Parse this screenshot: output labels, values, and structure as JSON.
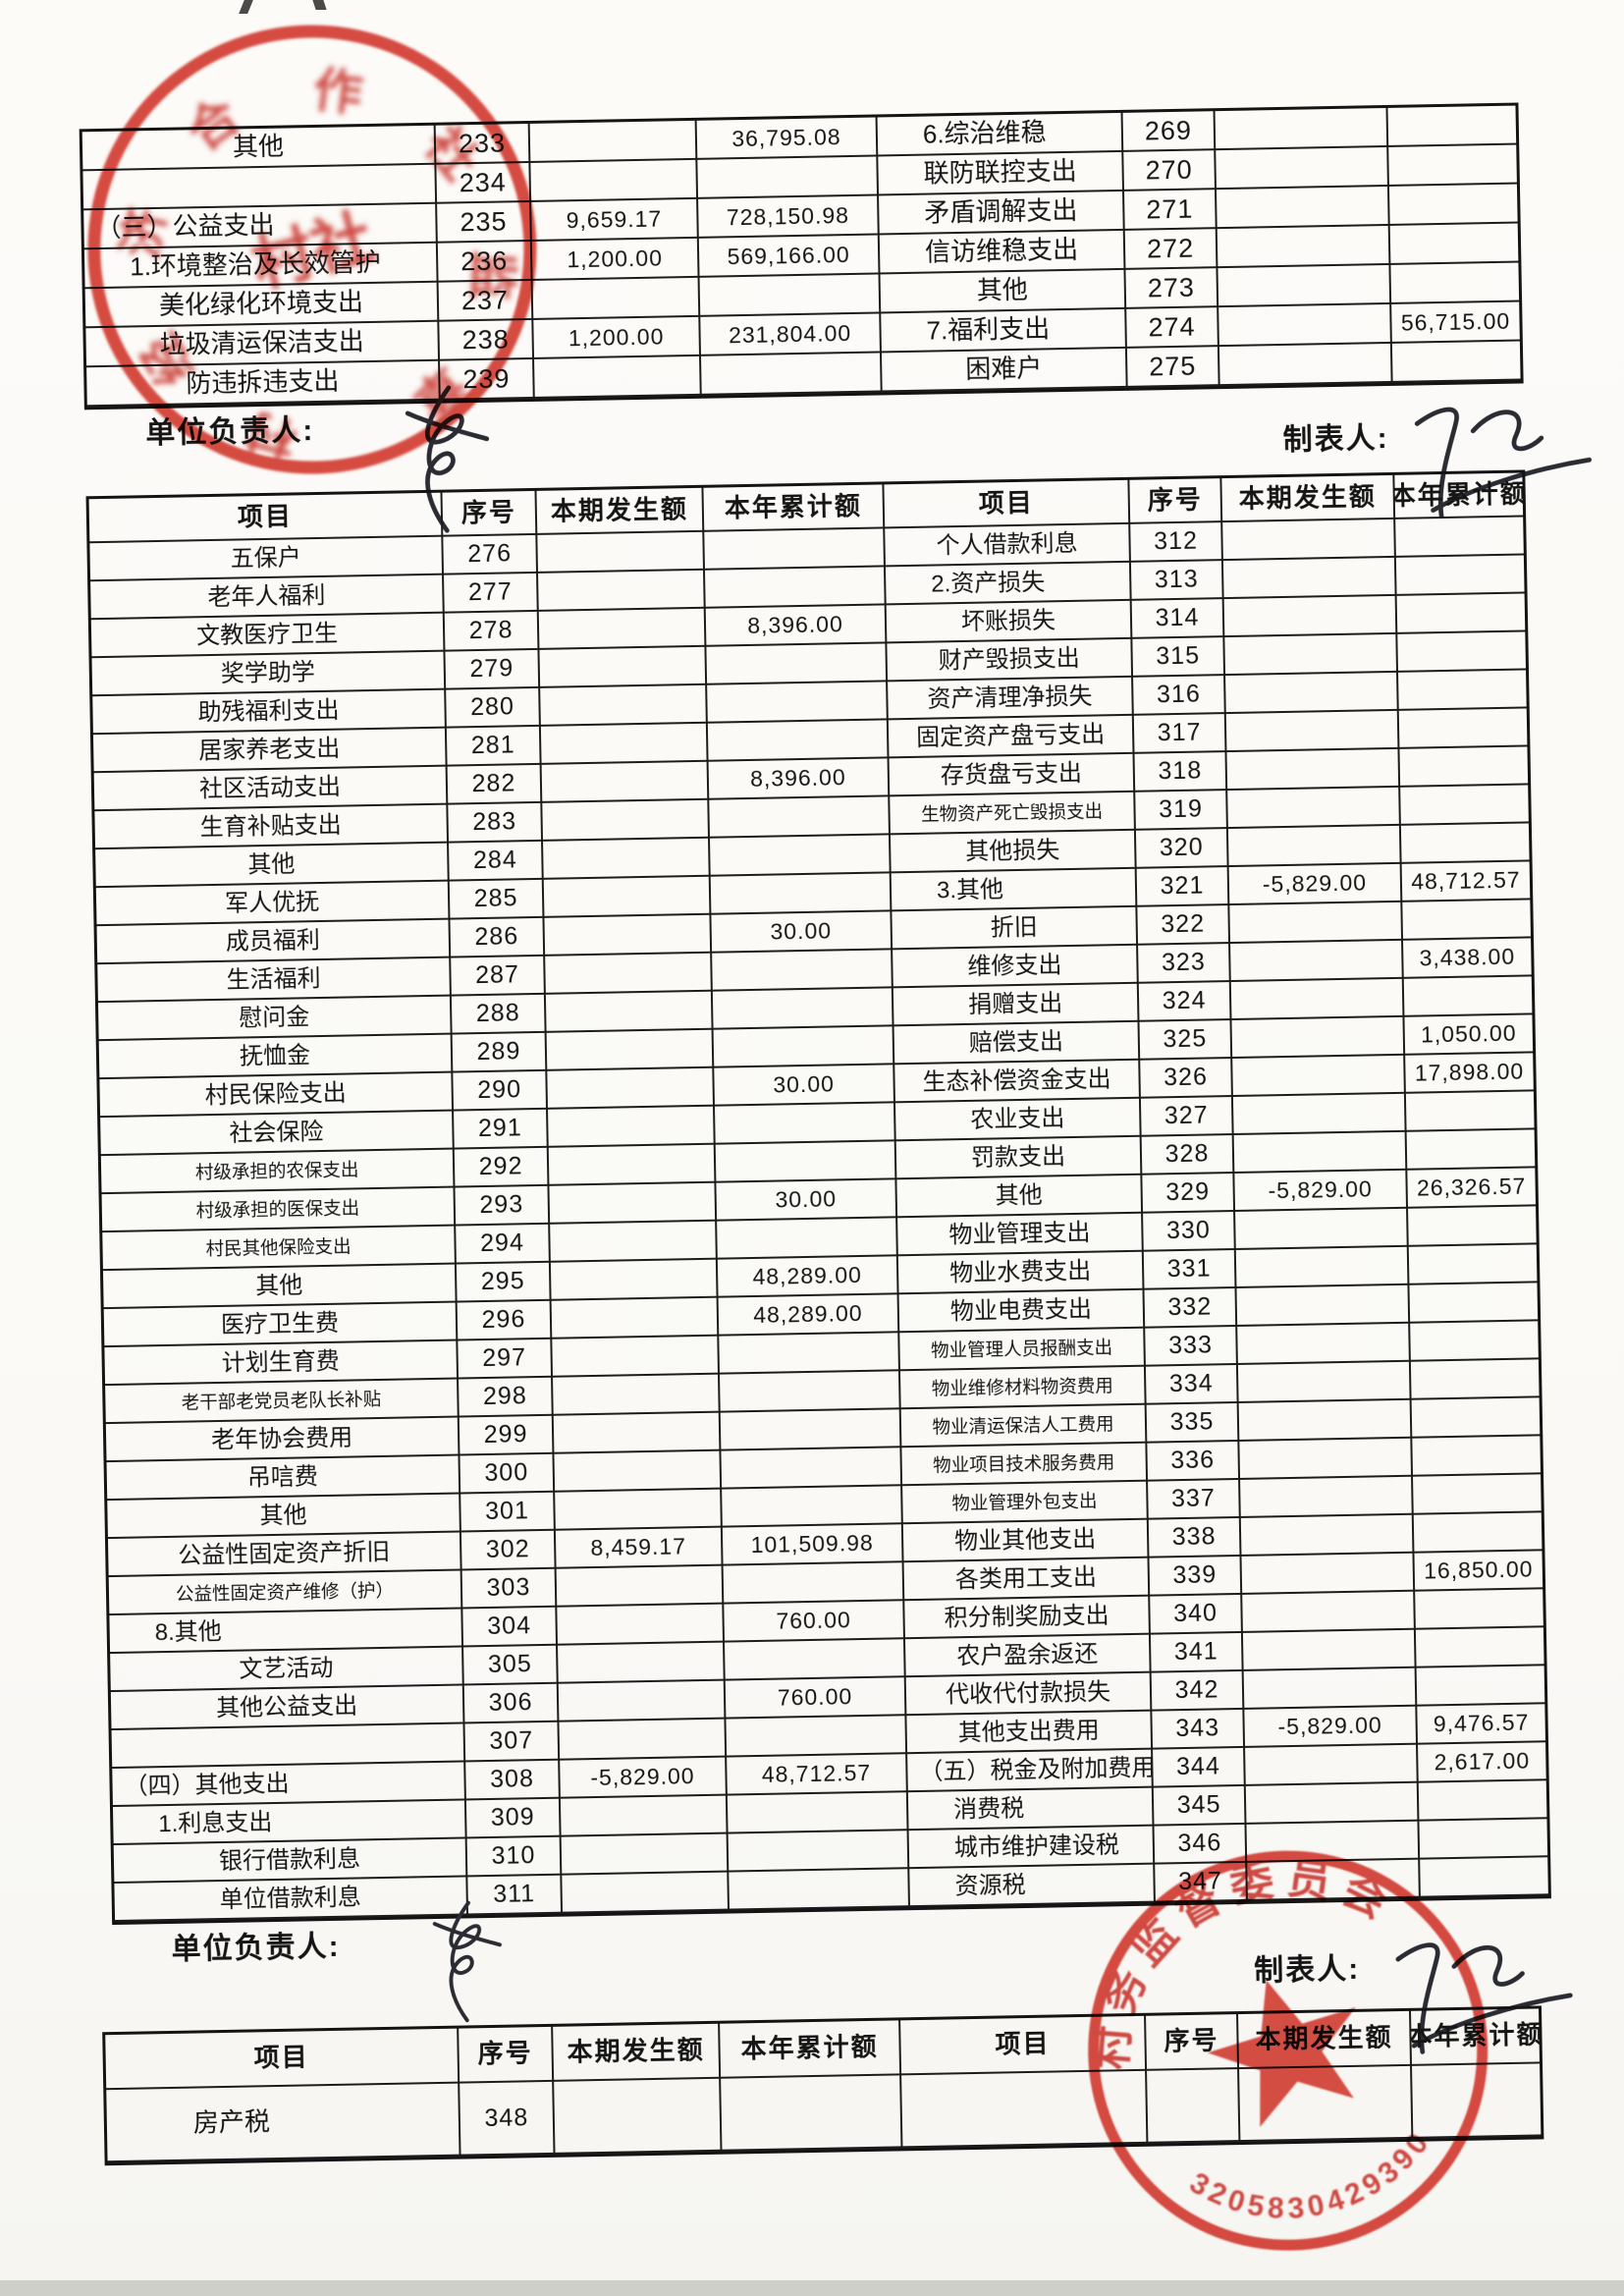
{
  "page": {
    "responsible_label": "单位负责人:",
    "preparer_label": "制表人:"
  },
  "table_headers": [
    "项目",
    "序号",
    "本期发生额",
    "本年累计额"
  ],
  "top_table": {
    "left_rows": [
      {
        "item": "其他",
        "no": "233",
        "cur": "",
        "ytd": "36,795.08",
        "st": "c"
      },
      {
        "item": "",
        "no": "234",
        "cur": "",
        "ytd": "",
        "st": "c"
      },
      {
        "item": "（三）公益支出",
        "no": "235",
        "cur": "9,659.17",
        "ytd": "728,150.98",
        "st": "l"
      },
      {
        "item": "1.环境整治及长效管护",
        "no": "236",
        "cur": "1,200.00",
        "ytd": "569,166.00",
        "st": "l1"
      },
      {
        "item": "美化绿化环境支出",
        "no": "237",
        "cur": "",
        "ytd": "",
        "st": "c"
      },
      {
        "item": "垃圾清运保洁支出",
        "no": "238",
        "cur": "1,200.00",
        "ytd": "231,804.00",
        "st": "c"
      },
      {
        "item": "防违拆违支出",
        "no": "239",
        "cur": "",
        "ytd": "",
        "st": "c"
      }
    ],
    "right_rows": [
      {
        "item": "6.综治维稳",
        "no": "269",
        "cur": "",
        "ytd": "",
        "st": "l1"
      },
      {
        "item": "联防联控支出",
        "no": "270",
        "cur": "",
        "ytd": "",
        "st": "c"
      },
      {
        "item": "矛盾调解支出",
        "no": "271",
        "cur": "",
        "ytd": "",
        "st": "c"
      },
      {
        "item": "信访维稳支出",
        "no": "272",
        "cur": "",
        "ytd": "",
        "st": "c"
      },
      {
        "item": "其他",
        "no": "273",
        "cur": "",
        "ytd": "",
        "st": "c"
      },
      {
        "item": "7.福利支出",
        "no": "274",
        "cur": "",
        "ytd": "56,715.00",
        "st": "l1"
      },
      {
        "item": "困难户",
        "no": "275",
        "cur": "",
        "ytd": "",
        "st": "c"
      }
    ]
  },
  "main_table": {
    "left_rows": [
      {
        "item": "五保户",
        "no": "276",
        "cur": "",
        "ytd": "",
        "st": "c"
      },
      {
        "item": "老年人福利",
        "no": "277",
        "cur": "",
        "ytd": "",
        "st": "c"
      },
      {
        "item": "文教医疗卫生",
        "no": "278",
        "cur": "",
        "ytd": "8,396.00",
        "st": "c"
      },
      {
        "item": "奖学助学",
        "no": "279",
        "cur": "",
        "ytd": "",
        "st": "c"
      },
      {
        "item": "助残福利支出",
        "no": "280",
        "cur": "",
        "ytd": "",
        "st": "c"
      },
      {
        "item": "居家养老支出",
        "no": "281",
        "cur": "",
        "ytd": "",
        "st": "c"
      },
      {
        "item": "社区活动支出",
        "no": "282",
        "cur": "",
        "ytd": "8,396.00",
        "st": "c"
      },
      {
        "item": "生育补贴支出",
        "no": "283",
        "cur": "",
        "ytd": "",
        "st": "c"
      },
      {
        "item": "其他",
        "no": "284",
        "cur": "",
        "ytd": "",
        "st": "c"
      },
      {
        "item": "军人优抚",
        "no": "285",
        "cur": "",
        "ytd": "",
        "st": "c"
      },
      {
        "item": "成员福利",
        "no": "286",
        "cur": "",
        "ytd": "30.00",
        "st": "c"
      },
      {
        "item": "生活福利",
        "no": "287",
        "cur": "",
        "ytd": "",
        "st": "c"
      },
      {
        "item": "慰问金",
        "no": "288",
        "cur": "",
        "ytd": "",
        "st": "c"
      },
      {
        "item": "抚恤金",
        "no": "289",
        "cur": "",
        "ytd": "",
        "st": "c"
      },
      {
        "item": "村民保险支出",
        "no": "290",
        "cur": "",
        "ytd": "30.00",
        "st": "c"
      },
      {
        "item": "社会保险",
        "no": "291",
        "cur": "",
        "ytd": "",
        "st": "c"
      },
      {
        "item": "村级承担的农保支出",
        "no": "292",
        "cur": "",
        "ytd": "",
        "st": "cs"
      },
      {
        "item": "村级承担的医保支出",
        "no": "293",
        "cur": "",
        "ytd": "30.00",
        "st": "cs"
      },
      {
        "item": "村民其他保险支出",
        "no": "294",
        "cur": "",
        "ytd": "",
        "st": "cs"
      },
      {
        "item": "其他",
        "no": "295",
        "cur": "",
        "ytd": "48,289.00",
        "st": "c"
      },
      {
        "item": "医疗卫生费",
        "no": "296",
        "cur": "",
        "ytd": "48,289.00",
        "st": "c"
      },
      {
        "item": "计划生育费",
        "no": "297",
        "cur": "",
        "ytd": "",
        "st": "c"
      },
      {
        "item": "老干部老党员老队长补贴",
        "no": "298",
        "cur": "",
        "ytd": "",
        "st": "cs"
      },
      {
        "item": "老年协会费用",
        "no": "299",
        "cur": "",
        "ytd": "",
        "st": "c"
      },
      {
        "item": "吊唁费",
        "no": "300",
        "cur": "",
        "ytd": "",
        "st": "c"
      },
      {
        "item": "其他",
        "no": "301",
        "cur": "",
        "ytd": "",
        "st": "c"
      },
      {
        "item": "公益性固定资产折旧",
        "no": "302",
        "cur": "8,459.17",
        "ytd": "101,509.98",
        "st": "c"
      },
      {
        "item": "公益性固定资产维修（护）",
        "no": "303",
        "cur": "",
        "ytd": "",
        "st": "cs"
      },
      {
        "item": "8.其他",
        "no": "304",
        "cur": "",
        "ytd": "760.00",
        "st": "l1"
      },
      {
        "item": "文艺活动",
        "no": "305",
        "cur": "",
        "ytd": "",
        "st": "c"
      },
      {
        "item": "其他公益支出",
        "no": "306",
        "cur": "",
        "ytd": "760.00",
        "st": "c"
      },
      {
        "item": "",
        "no": "307",
        "cur": "",
        "ytd": "",
        "st": "c"
      },
      {
        "item": "（四）其他支出",
        "no": "308",
        "cur": "-5,829.00",
        "ytd": "48,712.57",
        "st": "l"
      },
      {
        "item": "1.利息支出",
        "no": "309",
        "cur": "",
        "ytd": "",
        "st": "l1"
      },
      {
        "item": "银行借款利息",
        "no": "310",
        "cur": "",
        "ytd": "",
        "st": "c"
      },
      {
        "item": "单位借款利息",
        "no": "311",
        "cur": "",
        "ytd": "",
        "st": "c"
      }
    ],
    "right_rows": [
      {
        "item": "个人借款利息",
        "no": "312",
        "cur": "",
        "ytd": "",
        "st": "c"
      },
      {
        "item": "2.资产损失",
        "no": "313",
        "cur": "",
        "ytd": "",
        "st": "l1"
      },
      {
        "item": "坏账损失",
        "no": "314",
        "cur": "",
        "ytd": "",
        "st": "c"
      },
      {
        "item": "财产毁损支出",
        "no": "315",
        "cur": "",
        "ytd": "",
        "st": "c"
      },
      {
        "item": "资产清理净损失",
        "no": "316",
        "cur": "",
        "ytd": "",
        "st": "c"
      },
      {
        "item": "固定资产盘亏支出",
        "no": "317",
        "cur": "",
        "ytd": "",
        "st": "c"
      },
      {
        "item": "存货盘亏支出",
        "no": "318",
        "cur": "",
        "ytd": "",
        "st": "c"
      },
      {
        "item": "生物资产死亡毁损支出",
        "no": "319",
        "cur": "",
        "ytd": "",
        "st": "cs"
      },
      {
        "item": "其他损失",
        "no": "320",
        "cur": "",
        "ytd": "",
        "st": "c"
      },
      {
        "item": "3.其他",
        "no": "321",
        "cur": "-5,829.00",
        "ytd": "48,712.57",
        "st": "l1"
      },
      {
        "item": "折旧",
        "no": "322",
        "cur": "",
        "ytd": "",
        "st": "c"
      },
      {
        "item": "维修支出",
        "no": "323",
        "cur": "",
        "ytd": "3,438.00",
        "st": "c"
      },
      {
        "item": "捐赠支出",
        "no": "324",
        "cur": "",
        "ytd": "",
        "st": "c"
      },
      {
        "item": "赔偿支出",
        "no": "325",
        "cur": "",
        "ytd": "1,050.00",
        "st": "c"
      },
      {
        "item": "生态补偿资金支出",
        "no": "326",
        "cur": "",
        "ytd": "17,898.00",
        "st": "c"
      },
      {
        "item": "农业支出",
        "no": "327",
        "cur": "",
        "ytd": "",
        "st": "c"
      },
      {
        "item": "罚款支出",
        "no": "328",
        "cur": "",
        "ytd": "",
        "st": "c"
      },
      {
        "item": "其他",
        "no": "329",
        "cur": "-5,829.00",
        "ytd": "26,326.57",
        "st": "c"
      },
      {
        "item": "物业管理支出",
        "no": "330",
        "cur": "",
        "ytd": "",
        "st": "c"
      },
      {
        "item": "物业水费支出",
        "no": "331",
        "cur": "",
        "ytd": "",
        "st": "c"
      },
      {
        "item": "物业电费支出",
        "no": "332",
        "cur": "",
        "ytd": "",
        "st": "c"
      },
      {
        "item": "物业管理人员报酬支出",
        "no": "333",
        "cur": "",
        "ytd": "",
        "st": "cs"
      },
      {
        "item": "物业维修材料物资费用",
        "no": "334",
        "cur": "",
        "ytd": "",
        "st": "cs"
      },
      {
        "item": "物业清运保洁人工费用",
        "no": "335",
        "cur": "",
        "ytd": "",
        "st": "cs"
      },
      {
        "item": "物业项目技术服务费用",
        "no": "336",
        "cur": "",
        "ytd": "",
        "st": "cs"
      },
      {
        "item": "物业管理外包支出",
        "no": "337",
        "cur": "",
        "ytd": "",
        "st": "cs"
      },
      {
        "item": "物业其他支出",
        "no": "338",
        "cur": "",
        "ytd": "",
        "st": "c"
      },
      {
        "item": "各类用工支出",
        "no": "339",
        "cur": "",
        "ytd": "16,850.00",
        "st": "c"
      },
      {
        "item": "积分制奖励支出",
        "no": "340",
        "cur": "",
        "ytd": "",
        "st": "c"
      },
      {
        "item": "农户盈余返还",
        "no": "341",
        "cur": "",
        "ytd": "",
        "st": "c"
      },
      {
        "item": "代收代付款损失",
        "no": "342",
        "cur": "",
        "ytd": "",
        "st": "c"
      },
      {
        "item": "其他支出费用",
        "no": "343",
        "cur": "-5,829.00",
        "ytd": "9,476.57",
        "st": "c"
      },
      {
        "item": "（五）税金及附加费用",
        "no": "344",
        "cur": "",
        "ytd": "2,617.00",
        "st": "l"
      },
      {
        "item": "消费税",
        "no": "345",
        "cur": "",
        "ytd": "",
        "st": "l1"
      },
      {
        "item": "城市维护建设税",
        "no": "346",
        "cur": "",
        "ytd": "",
        "st": "l1"
      },
      {
        "item": "资源税",
        "no": "347",
        "cur": "",
        "ytd": "",
        "st": "l1"
      }
    ]
  },
  "bottom_table": {
    "left_rows": [
      {
        "item": "房产税",
        "no": "348",
        "cur": "",
        "ytd": "",
        "st": "l1"
      }
    ],
    "right_rows": [
      {
        "item": "",
        "no": "",
        "cur": "",
        "ytd": "",
        "st": "c"
      }
    ]
  },
  "stamps": {
    "bottom_arc_text": "村务监督委员会",
    "bottom_serial": "3205830429390",
    "top_glyphs": [
      "村",
      "经",
      "济",
      "合",
      "作",
      "社",
      "监",
      "章"
    ],
    "top_center": "村社"
  }
}
